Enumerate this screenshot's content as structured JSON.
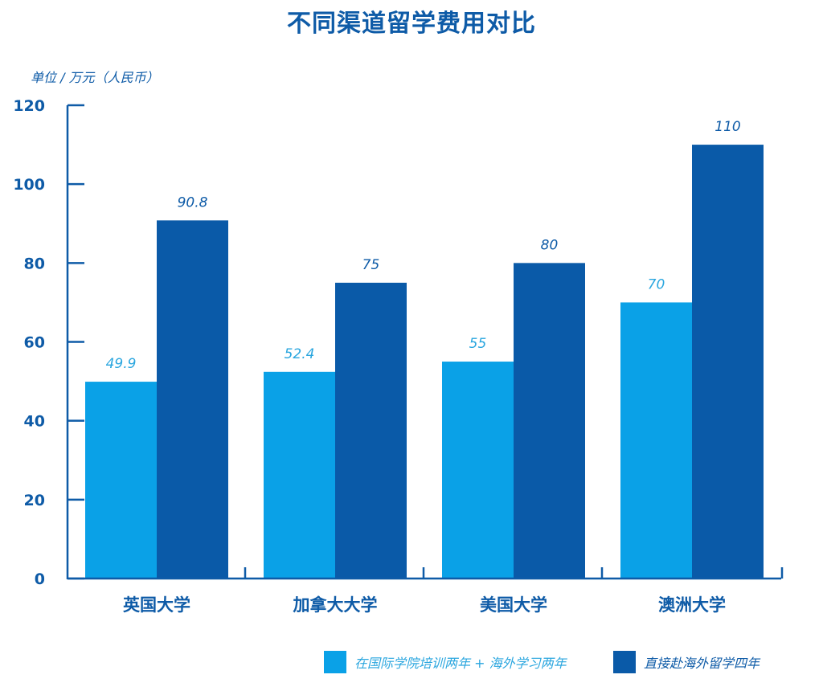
{
  "chart_data": {
    "type": "bar",
    "title": "不同渠道留学费用对比",
    "ylabel": "单位 / 万元（人民币）",
    "xlabel": "",
    "categories": [
      "英国大学",
      "加拿大大学",
      "美国大学",
      "澳洲大学"
    ],
    "ylim": [
      0,
      120
    ],
    "yticks": [
      0,
      20,
      40,
      60,
      80,
      100,
      120
    ],
    "yticklabels": [
      "0",
      "20",
      "40",
      "60",
      "80",
      "100",
      "120"
    ],
    "grid": false,
    "legend_position": "bottom-right",
    "series": [
      {
        "name": "在国际学院培训两年 + 海外学习两年",
        "values": [
          49.9,
          52.4,
          55,
          70
        ],
        "labels": [
          "49.9",
          "52.4",
          "55",
          "70"
        ],
        "color": "#0aa1e7"
      },
      {
        "name": "直接赴海外留学四年",
        "values": [
          90.8,
          75,
          80,
          110
        ],
        "labels": [
          "90.8",
          "75",
          "80",
          "110"
        ],
        "color": "#0a5aa8"
      }
    ],
    "axis_color": "#0e5ba7",
    "label_colors": [
      "#2aa6df",
      "#0e5ba7"
    ]
  }
}
